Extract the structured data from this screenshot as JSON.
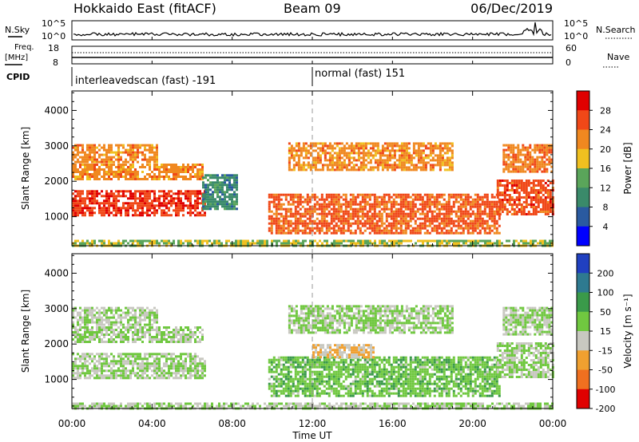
{
  "header": {
    "station": "Hokkaido East (fitACF)",
    "beam": "Beam 09",
    "date": "06/Dec/2019"
  },
  "top_panels": {
    "nsky_label": "N.Sky",
    "nsky_tick_top": "10^5",
    "nsky_tick_bottom": "10^0",
    "nsearch_label": "N.Search",
    "nsearch_tick_top": "10^5",
    "nsearch_tick_bottom": "10^0",
    "freq_label": "Freq.",
    "freq_unit": "[MHz]",
    "freq_tick_top": "18",
    "freq_tick_bottom": "8",
    "nave_label": "Nave",
    "nave_tick_top": "60",
    "nave_tick_bottom": "0",
    "cpid_label": "CPID",
    "cpid_modes": [
      {
        "name": "interleavedscan (fast) -191"
      },
      {
        "name": "normal (fast) 151"
      }
    ]
  },
  "chart_data": [
    {
      "type": "heatmap",
      "name": "power",
      "ylabel": "Slant Range [km]",
      "yticks": [
        1000,
        2000,
        3000,
        4000
      ],
      "ylim": [
        180,
        4550
      ],
      "colorbar_label": "Power [dB]",
      "colorbar_ticks": [
        "4",
        "8",
        "12",
        "16",
        "20",
        "24",
        "28"
      ],
      "colorbar_range": [
        0,
        32
      ],
      "colors": [
        "#0000ff",
        "#2a5aa0",
        "#3a8a6a",
        "#5aa55a",
        "#f0c020",
        "#f08820",
        "#f04818",
        "#e00000"
      ],
      "regions": [
        {
          "label": "E-region band 00-07 UT",
          "t0": 0.0,
          "t1": 6.6,
          "r0": 1050,
          "r1": 1750,
          "power_db": 27
        },
        {
          "label": "F-region 00-07 UT",
          "t0": 0.0,
          "t1": 6.5,
          "r0": 2050,
          "r1": 2500,
          "power_db": 22
        },
        {
          "label": "F-region 00-04 UT",
          "t0": 0.0,
          "t1": 4.2,
          "r0": 2550,
          "r1": 3050,
          "power_db": 22
        },
        {
          "label": "scatter 07-09 UT",
          "t0": 6.5,
          "t1": 8.2,
          "r0": 1200,
          "r1": 2200,
          "power_db": 10
        },
        {
          "label": "band 10-21 UT",
          "t0": 9.8,
          "t1": 21.3,
          "r0": 550,
          "r1": 1650,
          "power_db": 25
        },
        {
          "label": "band 21-24 UT",
          "t0": 21.2,
          "t1": 24.0,
          "r0": 1050,
          "r1": 2050,
          "power_db": 26
        },
        {
          "label": "upper F 21-24 UT",
          "t0": 21.5,
          "t1": 24.0,
          "r0": 2300,
          "r1": 3050,
          "power_db": 23
        },
        {
          "label": "upper F 11-19 UT",
          "t0": 10.8,
          "t1": 19.0,
          "r0": 2300,
          "r1": 3100,
          "power_db": 22
        },
        {
          "label": "near range",
          "t0": 0.0,
          "t1": 24.0,
          "r0": 180,
          "r1": 350,
          "power_db": 16
        }
      ]
    },
    {
      "type": "heatmap",
      "name": "velocity",
      "ylabel": "Slant Range [km]",
      "yticks": [
        1000,
        2000,
        3000,
        4000
      ],
      "ylim": [
        180,
        4550
      ],
      "colorbar_label": "Velocity [m s⁻¹]",
      "colorbar_ticks": [
        "200",
        "100",
        "50",
        "15",
        "-15",
        "-50",
        "-100",
        "-200"
      ],
      "colorbar_range": [
        -250,
        250
      ],
      "colors": [
        "#2040c0",
        "#2e7a90",
        "#3a9a4a",
        "#70c840",
        "#c8c8c0",
        "#f0a030",
        "#f07020",
        "#e00000"
      ],
      "regions": [
        {
          "label": "ground scatter 00-07 UT",
          "t0": 0.0,
          "t1": 6.6,
          "r0": 1050,
          "r1": 1750,
          "velocity": 0
        },
        {
          "label": "ground scatter F 00-07 UT",
          "t0": 0.0,
          "t1": 6.5,
          "r0": 2050,
          "r1": 2500,
          "velocity": 0
        },
        {
          "label": "ground scatter 00-04 UT",
          "t0": 0.0,
          "t1": 4.2,
          "r0": 2550,
          "r1": 3050,
          "velocity": 0
        },
        {
          "label": "ionospheric 10-21 UT",
          "t0": 9.8,
          "t1": 21.3,
          "r0": 550,
          "r1": 1650,
          "velocity": 40
        },
        {
          "label": "westward 12-15 UT",
          "t0": 12.0,
          "t1": 15.0,
          "r0": 1600,
          "r1": 2000,
          "velocity": -60
        },
        {
          "label": "ground scatter 21-24 UT",
          "t0": 21.2,
          "t1": 24.0,
          "r0": 1050,
          "r1": 2050,
          "velocity": 0
        },
        {
          "label": "upper 21-24 UT",
          "t0": 21.5,
          "t1": 24.0,
          "r0": 2300,
          "r1": 3050,
          "velocity": 0
        },
        {
          "label": "upper 11-19 UT",
          "t0": 10.8,
          "t1": 19.0,
          "r0": 2300,
          "r1": 3100,
          "velocity": 5
        },
        {
          "label": "near range",
          "t0": 0.0,
          "t1": 24.0,
          "r0": 180,
          "r1": 350,
          "velocity": 0
        }
      ]
    }
  ],
  "time_axis": {
    "xlabel": "Time UT",
    "ticks": [
      "00:00",
      "04:00",
      "08:00",
      "12:00",
      "16:00",
      "20:00",
      "00:00"
    ],
    "xlim_hours": [
      0,
      24
    ],
    "cpid_change_hour": 12.0
  }
}
